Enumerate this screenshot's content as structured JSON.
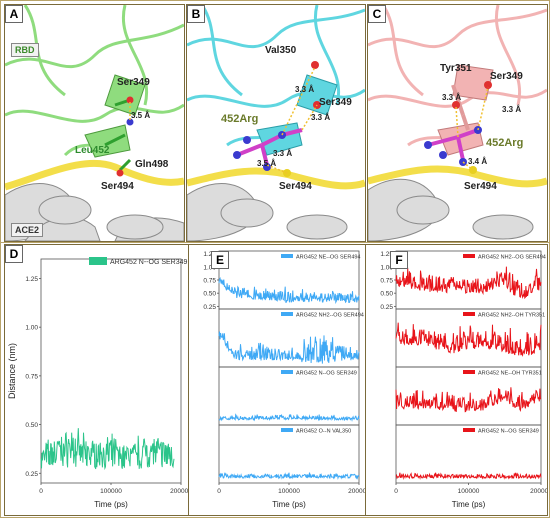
{
  "panels_top": {
    "A": {
      "label": "A",
      "rbd_label": "RBD",
      "ace2_label": "ACE2",
      "residues": {
        "ser349": "Ser349",
        "leu452": "Leu452",
        "gln498": "Gln498",
        "ser494": "Ser494"
      },
      "distances": {
        "d1": "3.5 Å"
      }
    },
    "B": {
      "label": "B",
      "residues": {
        "val350": "Val350",
        "ser349": "Ser349",
        "arg452": "452Arg",
        "ser494": "Ser494"
      },
      "distances": {
        "d1": "3.3 Å",
        "d2": "3.3 Å",
        "d3": "3.3 Å",
        "d4": "3.5 Å"
      }
    },
    "C": {
      "label": "C",
      "residues": {
        "tyr351": "Tyr351",
        "ser349": "Ser349",
        "arg452": "452Arg",
        "ser494": "Ser494"
      },
      "distances": {
        "d1": "3.3 Å",
        "d2": "3.3 Å",
        "d3": "3.4 Å"
      }
    }
  },
  "colors": {
    "D": "#2bc48a",
    "E": "#3fa9f5",
    "F": "#e8141a",
    "rbd_A": "#9be38a",
    "rbd_B": "#5fd6e0",
    "rbd_C": "#f2b3b3",
    "ace2": "#d9d9d9",
    "helix": "#f5e35a",
    "arg": "#d040c8",
    "mol_bg": "#ffffff"
  },
  "charts": {
    "D": {
      "label": "D",
      "ylabel": "Distance (nm)",
      "xlabel": "Time (ps)"
    },
    "E": {
      "label": "E",
      "xlabel": "Time (ps)"
    },
    "F": {
      "label": "F",
      "xlabel": "Time (ps)"
    }
  },
  "chart_data": [
    {
      "id": "D",
      "type": "line",
      "xlabel": "Time (ps)",
      "ylabel": "Distance (nm)",
      "xlim": [
        0,
        200000
      ],
      "ylim": [
        0.2,
        1.35
      ],
      "xticks": [
        "0",
        "100000",
        "200000"
      ],
      "yticks": [
        "0.25",
        "0.50",
        "0.75",
        "1.00",
        "1.25"
      ],
      "legend_position": "top-right",
      "series": [
        {
          "name": "ARG452 N--OG SER349",
          "color": "#2bc48a",
          "x": [
            0,
            20000,
            40000,
            60000,
            80000,
            100000,
            120000,
            140000,
            160000,
            180000
          ],
          "y_min": [
            0.26,
            0.28,
            0.28,
            0.28,
            0.27,
            0.28,
            0.27,
            0.27,
            0.28,
            0.28
          ],
          "y_max": [
            0.4,
            0.46,
            0.54,
            0.46,
            0.44,
            0.46,
            0.41,
            0.46,
            0.5,
            0.44
          ],
          "y_typical": [
            0.33,
            0.36,
            0.38,
            0.36,
            0.35,
            0.36,
            0.34,
            0.35,
            0.37,
            0.35
          ]
        }
      ]
    },
    {
      "id": "E",
      "type": "line",
      "xlabel": "Time (ps)",
      "xlim": [
        0,
        200000
      ],
      "xticks": [
        "0",
        "100000",
        "200000"
      ],
      "subplots": [
        {
          "name": "ARG452 NE--OG SER494",
          "color": "#3fa9f5",
          "ylim": [
            0.2,
            1.3
          ],
          "yticks": [
            "0.25",
            "0.50",
            "0.75",
            "1.00",
            "1.25"
          ],
          "x": [
            0,
            25000,
            50000,
            100000,
            150000,
            200000
          ],
          "y_typical": [
            0.7,
            0.48,
            0.45,
            0.4,
            0.4,
            0.38
          ],
          "y_max": [
            0.8,
            0.72,
            0.65,
            0.62,
            0.6,
            0.55
          ]
        },
        {
          "name": "ARG452 NH2--OG SER494",
          "color": "#3fa9f5",
          "ylim": [
            0.2,
            1.3
          ],
          "x": [
            0,
            25000,
            50000,
            100000,
            150000,
            200000
          ],
          "y_typical": [
            0.8,
            0.4,
            0.42,
            0.4,
            0.42,
            0.38
          ],
          "y_max": [
            1.0,
            0.62,
            0.7,
            0.6,
            0.95,
            0.55
          ]
        },
        {
          "name": "ARG452 N--OG SER349",
          "color": "#3fa9f5",
          "ylim": [
            0.2,
            1.3
          ],
          "x": [
            0,
            100000,
            200000
          ],
          "y_typical": [
            0.32,
            0.33,
            0.32
          ],
          "y_max": [
            0.4,
            0.4,
            0.4
          ]
        },
        {
          "name": "ARG452 O--N VAL350",
          "color": "#3fa9f5",
          "ylim": [
            0.2,
            1.3
          ],
          "x": [
            0,
            100000,
            200000
          ],
          "y_typical": [
            0.32,
            0.32,
            0.32
          ],
          "y_max": [
            0.4,
            0.4,
            0.4
          ]
        }
      ]
    },
    {
      "id": "F",
      "type": "line",
      "xlabel": "Time (ps)",
      "xlim": [
        0,
        200000
      ],
      "xticks": [
        "0",
        "100000",
        "200000"
      ],
      "subplots": [
        {
          "name": "ARG452 NH2--OG SER494",
          "color": "#e8141a",
          "ylim": [
            0.2,
            1.3
          ],
          "yticks": [
            "0.25",
            "0.50",
            "0.75",
            "1.00",
            "1.25"
          ],
          "x": [
            0,
            40000,
            80000,
            120000,
            150000,
            170000,
            200000
          ],
          "y_typical": [
            0.75,
            0.65,
            0.62,
            0.6,
            0.75,
            0.5,
            0.7
          ],
          "y_max": [
            1.05,
            1.0,
            0.95,
            0.9,
            1.1,
            0.95,
            1.05
          ]
        },
        {
          "name": "ARG452 NH2--OH TYR351",
          "color": "#e8141a",
          "ylim": [
            0.2,
            1.3
          ],
          "x": [
            0,
            40000,
            80000,
            120000,
            150000,
            170000,
            200000
          ],
          "y_typical": [
            0.75,
            0.7,
            0.6,
            0.7,
            0.6,
            0.55,
            0.6
          ],
          "y_max": [
            1.05,
            1.05,
            1.0,
            1.05,
            1.0,
            1.0,
            1.05
          ]
        },
        {
          "name": "ARG452 NE--OH TYR351",
          "color": "#e8141a",
          "ylim": [
            0.2,
            1.3
          ],
          "x": [
            0,
            40000,
            80000,
            120000,
            150000,
            170000,
            200000
          ],
          "y_typical": [
            0.6,
            0.6,
            0.55,
            0.55,
            0.75,
            0.55,
            0.75
          ],
          "y_max": [
            0.9,
            0.85,
            0.85,
            0.8,
            1.0,
            0.85,
            1.0
          ]
        },
        {
          "name": "ARG452 N--OG SER349",
          "color": "#e8141a",
          "ylim": [
            0.2,
            1.3
          ],
          "x": [
            0,
            100000,
            200000
          ],
          "y_typical": [
            0.32,
            0.32,
            0.32
          ],
          "y_max": [
            0.4,
            0.4,
            0.4
          ]
        }
      ]
    }
  ]
}
